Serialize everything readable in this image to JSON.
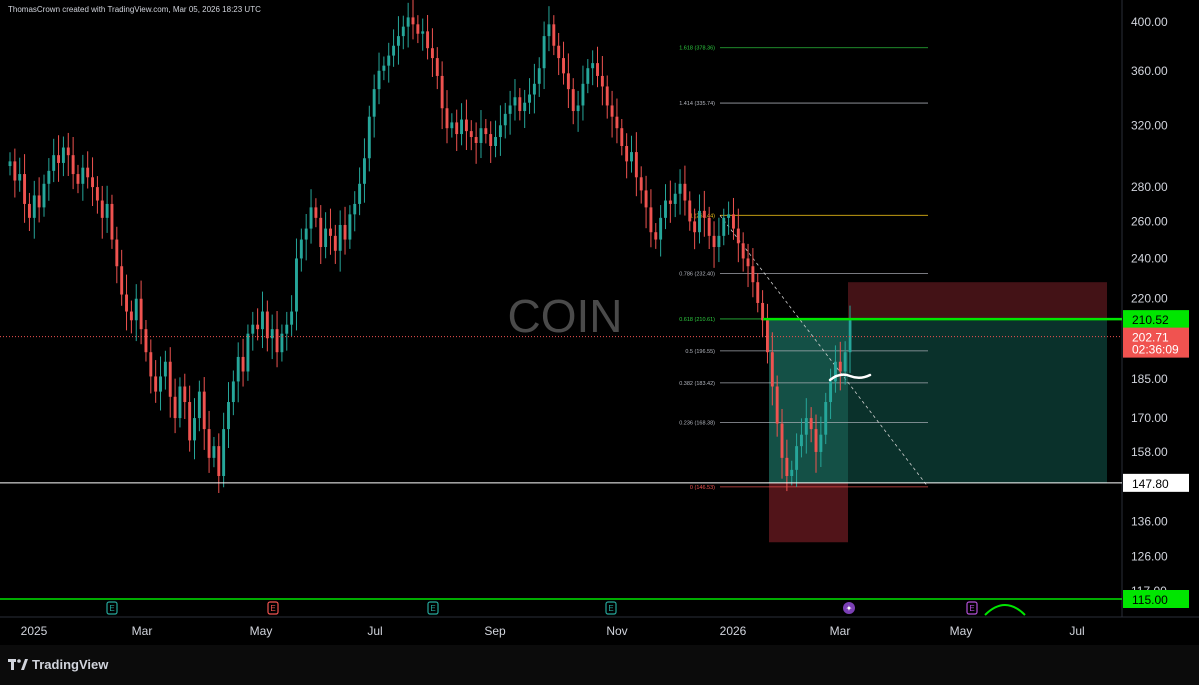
{
  "header": {
    "credit": "ThomasCrown created with TradingView.com, Mar 05, 2026 18:23 UTC"
  },
  "footer": {
    "brand": "TradingView"
  },
  "chart_data": {
    "type": "candlestick",
    "title": "",
    "watermark": "COIN",
    "y_axis": {
      "ticks": [
        400,
        360,
        320,
        280,
        260,
        240,
        220,
        185,
        170,
        158,
        136,
        126,
        117
      ],
      "tick_labels": [
        "400.00",
        "360.00",
        "320.00",
        "280.00",
        "260.00",
        "240.00",
        "220.00",
        "185.00",
        "170.00",
        "158.00",
        "136.00",
        "126.00",
        "117.00"
      ],
      "scale": "log",
      "range": [
        110,
        420
      ]
    },
    "x_axis": {
      "labels": [
        "2025",
        "Mar",
        "May",
        "Jul",
        "Sep",
        "Nov",
        "2026",
        "Mar",
        "May",
        "Jul"
      ]
    },
    "price_tags": [
      {
        "label": "210.52",
        "sub": "",
        "price": 210.52,
        "color": "#00e600",
        "text_color": "#000000"
      },
      {
        "label": "202.71",
        "sub": "02:36:09",
        "price": 202.71,
        "color": "#f05350",
        "text_color": "#ffffff"
      },
      {
        "label": "147.80",
        "sub": "",
        "price": 147.8,
        "color": "#ffffff",
        "text_color": "#000000"
      },
      {
        "label": "115.00",
        "sub": "",
        "price": 115.0,
        "color": "#00e600",
        "text_color": "#000000"
      }
    ],
    "horizontal_lines": [
      {
        "price": 210.52,
        "color": "#00e600",
        "width": 2.5,
        "span": "partial"
      },
      {
        "price": 202.71,
        "color": "#f05350",
        "width": 1,
        "style": "dotted",
        "span": "full"
      },
      {
        "price": 147.8,
        "color": "#ffffff",
        "width": 1,
        "span": "full"
      },
      {
        "price": 115.0,
        "color": "#00e600",
        "width": 1.5,
        "span": "full"
      }
    ],
    "fibonacci": [
      {
        "label": "1.618 (378.36)",
        "price": 378.36,
        "color": "#2ecc40"
      },
      {
        "label": "1.414 (335.74)",
        "price": 335.74,
        "color": "#b2b5be"
      },
      {
        "label": "1 (263.44)",
        "price": 263.44,
        "color": "#f5c518"
      },
      {
        "label": "0.786 (232.40)",
        "price": 232.4,
        "color": "#b2b5be"
      },
      {
        "label": "0.618 (210.61)",
        "price": 210.61,
        "color": "#2ecc40"
      },
      {
        "label": "0.5 (196.55)",
        "price": 196.55,
        "color": "#b2b5be"
      },
      {
        "label": "0.382 (183.42)",
        "price": 183.42,
        "color": "#b2b5be"
      },
      {
        "label": "0.236 (168.38)",
        "price": 168.38,
        "color": "#b2b5be"
      },
      {
        "label": "0 (146.53)",
        "price": 146.53,
        "color": "#f05350"
      }
    ],
    "events": [
      "E",
      "E",
      "E",
      "E",
      "spark",
      "E"
    ],
    "series_ohlc_note": "daily candles, values read approximately from chart",
    "closes": [
      296,
      284,
      288,
      270,
      262,
      275,
      268,
      282,
      290,
      300,
      295,
      305,
      300,
      288,
      282,
      292,
      286,
      280,
      272,
      262,
      270,
      250,
      236,
      222,
      214,
      210,
      220,
      206,
      196,
      186,
      180,
      186,
      192,
      178,
      170,
      182,
      176,
      162,
      170,
      180,
      166,
      156,
      160,
      150,
      166,
      176,
      184,
      194,
      188,
      204,
      208,
      206,
      214,
      202,
      206,
      196,
      204,
      208,
      214,
      240,
      250,
      256,
      268,
      262,
      246,
      256,
      252,
      244,
      258,
      250,
      264,
      270,
      282,
      298,
      326,
      346,
      360,
      364,
      372,
      380,
      388,
      396,
      404,
      398,
      390,
      392,
      378,
      370,
      356,
      332,
      318,
      322,
      314,
      324,
      316,
      312,
      308,
      318,
      314,
      306,
      312,
      320,
      328,
      334,
      340,
      330,
      336,
      342,
      350,
      362,
      388,
      398,
      380,
      370,
      358,
      346,
      330,
      334,
      350,
      362,
      366,
      356,
      348,
      334,
      326,
      318,
      306,
      296,
      302,
      286,
      278,
      268,
      254,
      250,
      262,
      272,
      270,
      276,
      282,
      272,
      260,
      254,
      266,
      262,
      252,
      246,
      252,
      262,
      264,
      256,
      248,
      240,
      236,
      228,
      218,
      210,
      196,
      182,
      168,
      156,
      150,
      152,
      160,
      164,
      170,
      166,
      158,
      164,
      176,
      184,
      192,
      188,
      196,
      210
    ]
  }
}
